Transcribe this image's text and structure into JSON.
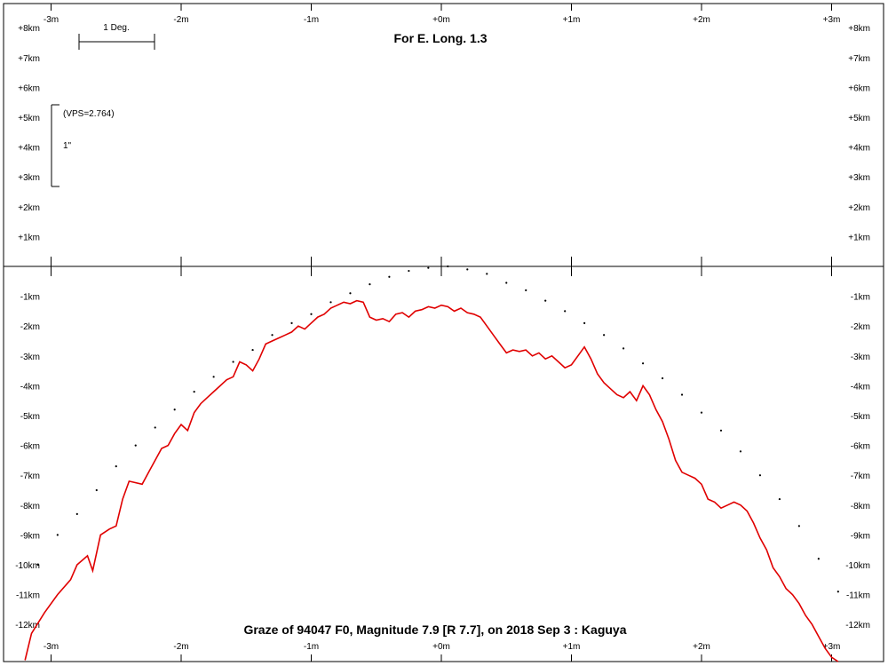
{
  "chart_data": {
    "type": "line",
    "title": "For E. Long. 1.3",
    "footer": "Graze of  94047 F0,  Magnitude 7.9 [R 7.7],  on 2018 Sep  3  :  Kaguya",
    "scale_bar_label": "1 Deg.",
    "vps_label": "(VPS=2.764)",
    "arcsec_label": "1\"",
    "x_ticks": [
      "-3m",
      "-2m",
      "-1m",
      "+0m",
      "+1m",
      "+2m",
      "+3m"
    ],
    "x_tick_values": [
      -3,
      -2,
      -1,
      0,
      1,
      2,
      3
    ],
    "xlim": [
      -3.35,
      3.4
    ],
    "ylim": [
      -13.2,
      9
    ],
    "y_ticks_top": [
      "+8km",
      "+7km",
      "+6km",
      "+5km",
      "+4km",
      "+3km",
      "+2km",
      "+1km"
    ],
    "y_tick_values_top": [
      8,
      7,
      6,
      5,
      4,
      3,
      2,
      1
    ],
    "y_ticks_bottom": [
      "-1km",
      "-2km",
      "-3km",
      "-4km",
      "-5km",
      "-6km",
      "-7km",
      "-8km",
      "-9km",
      "-10km",
      "-11km",
      "-12km"
    ],
    "y_tick_values_bottom": [
      -1,
      -2,
      -3,
      -4,
      -5,
      -6,
      -7,
      -8,
      -9,
      -10,
      -11,
      -12
    ],
    "colors": {
      "profile": "#e00000",
      "axis": "#000000",
      "dots": "#000000"
    },
    "series": [
      {
        "style": "red-line",
        "x": [
          -3.2,
          -3.15,
          -3.05,
          -2.95,
          -2.85,
          -2.8,
          -2.72,
          -2.68,
          -2.62,
          -2.55,
          -2.5,
          -2.45,
          -2.4,
          -2.3,
          -2.25,
          -2.2,
          -2.15,
          -2.1,
          -2.05,
          -2.0,
          -1.95,
          -1.9,
          -1.85,
          -1.8,
          -1.75,
          -1.7,
          -1.65,
          -1.6,
          -1.55,
          -1.5,
          -1.45,
          -1.4,
          -1.35,
          -1.3,
          -1.25,
          -1.2,
          -1.15,
          -1.1,
          -1.05,
          -1.0,
          -0.95,
          -0.9,
          -0.85,
          -0.8,
          -0.75,
          -0.7,
          -0.65,
          -0.6,
          -0.55,
          -0.5,
          -0.45,
          -0.4,
          -0.35,
          -0.3,
          -0.25,
          -0.2,
          -0.15,
          -0.1,
          -0.05,
          0.0,
          0.05,
          0.1,
          0.15,
          0.2,
          0.25,
          0.3,
          0.35,
          0.4,
          0.45,
          0.5,
          0.55,
          0.6,
          0.65,
          0.7,
          0.75,
          0.8,
          0.85,
          0.9,
          0.95,
          1.0,
          1.05,
          1.1,
          1.15,
          1.2,
          1.25,
          1.3,
          1.35,
          1.4,
          1.45,
          1.5,
          1.55,
          1.6,
          1.65,
          1.7,
          1.75,
          1.8,
          1.85,
          1.9,
          1.95,
          2.0,
          2.05,
          2.1,
          2.15,
          2.2,
          2.25,
          2.3,
          2.35,
          2.4,
          2.45,
          2.5,
          2.55,
          2.6,
          2.65,
          2.7,
          2.75,
          2.8,
          2.85,
          2.9,
          2.95,
          3.0,
          3.05
        ],
        "y": [
          -13.2,
          -12.3,
          -11.6,
          -11.0,
          -10.5,
          -10.0,
          -9.7,
          -10.2,
          -9.0,
          -8.8,
          -8.7,
          -7.8,
          -7.2,
          -7.3,
          -6.9,
          -6.5,
          -6.1,
          -6.0,
          -5.6,
          -5.3,
          -5.5,
          -4.9,
          -4.6,
          -4.4,
          -4.2,
          -4.0,
          -3.8,
          -3.7,
          -3.2,
          -3.3,
          -3.5,
          -3.1,
          -2.6,
          -2.5,
          -2.4,
          -2.3,
          -2.2,
          -2.0,
          -2.1,
          -1.9,
          -1.7,
          -1.6,
          -1.4,
          -1.3,
          -1.2,
          -1.25,
          -1.15,
          -1.2,
          -1.7,
          -1.8,
          -1.75,
          -1.85,
          -1.6,
          -1.55,
          -1.7,
          -1.5,
          -1.45,
          -1.35,
          -1.4,
          -1.3,
          -1.35,
          -1.5,
          -1.4,
          -1.55,
          -1.6,
          -1.7,
          -2.0,
          -2.3,
          -2.6,
          -2.9,
          -2.8,
          -2.85,
          -2.8,
          -3.0,
          -2.9,
          -3.1,
          -3.0,
          -3.2,
          -3.4,
          -3.3,
          -3.0,
          -2.7,
          -3.1,
          -3.6,
          -3.9,
          -4.1,
          -4.3,
          -4.4,
          -4.2,
          -4.5,
          -4.0,
          -4.3,
          -4.8,
          -5.2,
          -5.8,
          -6.5,
          -6.9,
          -7.0,
          -7.1,
          -7.3,
          -7.8,
          -7.9,
          -8.1,
          -8.0,
          -7.9,
          -8.0,
          -8.2,
          -8.6,
          -9.1,
          -9.5,
          -10.1,
          -10.4,
          -10.8,
          -11.0,
          -11.3,
          -11.7,
          -12.0,
          -12.4,
          -12.8,
          -13.1,
          -13.3
        ]
      },
      {
        "style": "dotted-limb",
        "x": [
          -3.1,
          -2.95,
          -2.8,
          -2.65,
          -2.5,
          -2.35,
          -2.2,
          -2.05,
          -1.9,
          -1.75,
          -1.6,
          -1.45,
          -1.3,
          -1.15,
          -1.0,
          -0.85,
          -0.7,
          -0.55,
          -0.4,
          -0.25,
          -0.1,
          0.05,
          0.2,
          0.35,
          0.5,
          0.65,
          0.8,
          0.95,
          1.1,
          1.25,
          1.4,
          1.55,
          1.7,
          1.85,
          2.0,
          2.15,
          2.3,
          2.45,
          2.6,
          2.75,
          2.9,
          3.05
        ],
        "y": [
          -10.0,
          -9.0,
          -8.3,
          -7.5,
          -6.7,
          -6.0,
          -5.4,
          -4.8,
          -4.2,
          -3.7,
          -3.2,
          -2.8,
          -2.3,
          -1.9,
          -1.6,
          -1.2,
          -0.9,
          -0.6,
          -0.35,
          -0.15,
          -0.05,
          0.0,
          -0.1,
          -0.25,
          -0.55,
          -0.8,
          -1.15,
          -1.5,
          -1.9,
          -2.3,
          -2.75,
          -3.25,
          -3.75,
          -4.3,
          -4.9,
          -5.5,
          -6.2,
          -7.0,
          -7.8,
          -8.7,
          -9.8,
          -10.9
        ]
      }
    ]
  }
}
